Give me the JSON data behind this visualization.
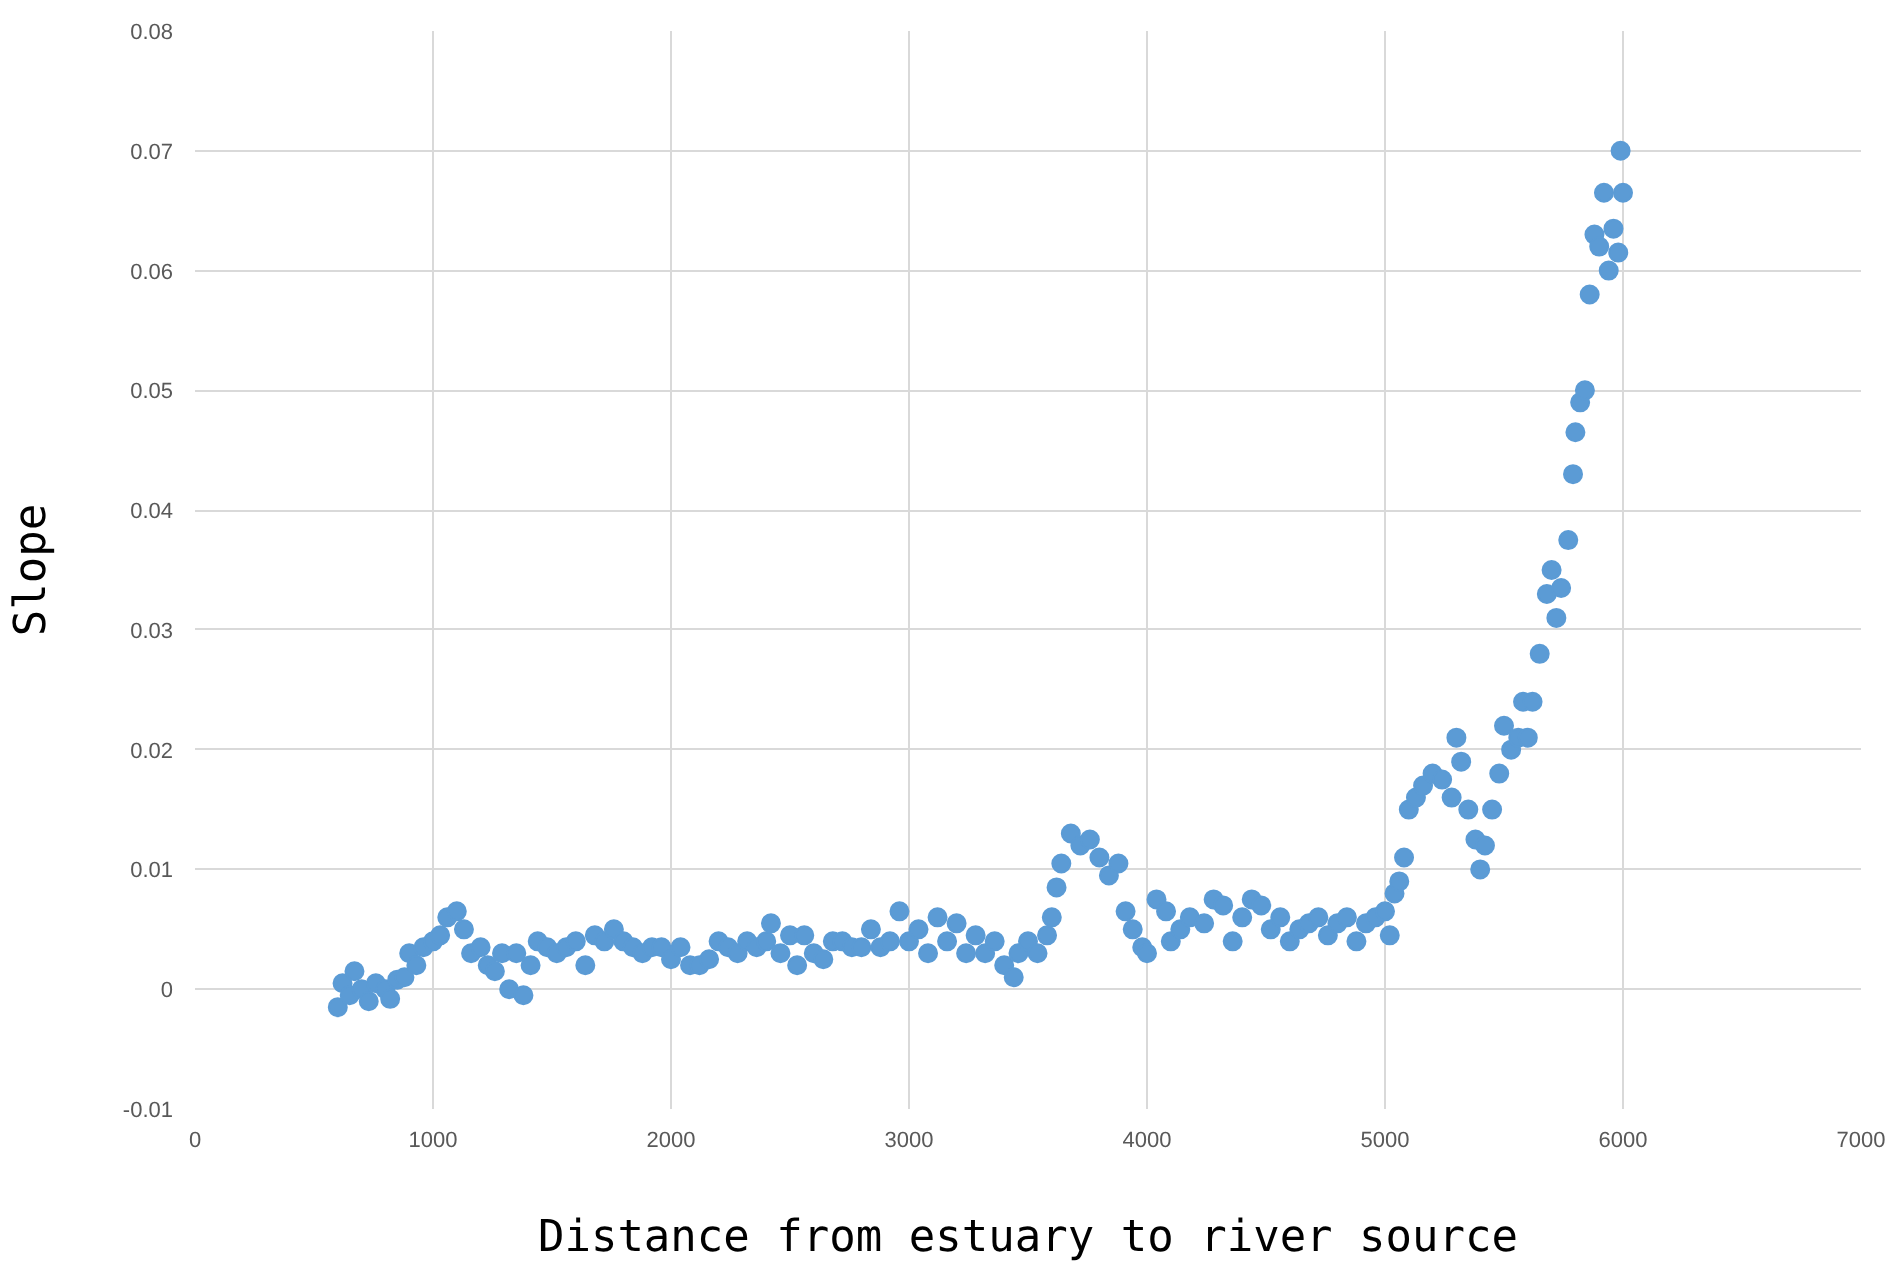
{
  "chart_data": {
    "type": "scatter",
    "xlabel": "Distance from estuary to river source",
    "ylabel": "Slope",
    "xlim": [
      0,
      7000
    ],
    "xticks": [
      0,
      1000,
      2000,
      3000,
      4000,
      5000,
      6000,
      7000
    ],
    "ylim": [
      -0.01,
      0.08
    ],
    "yticks": [
      -0.01,
      0,
      0.01,
      0.02,
      0.03,
      0.04,
      0.05,
      0.06,
      0.07,
      0.08
    ],
    "grid": true,
    "marker": "circle",
    "series": [
      {
        "color": "#5b9bd5",
        "x": [
          600,
          620,
          650,
          670,
          700,
          730,
          760,
          800,
          820,
          850,
          880,
          900,
          930,
          960,
          1000,
          1030,
          1060,
          1100,
          1130,
          1160,
          1200,
          1230,
          1260,
          1290,
          1320,
          1350,
          1380,
          1410,
          1440,
          1480,
          1520,
          1560,
          1600,
          1640,
          1680,
          1720,
          1760,
          1800,
          1840,
          1880,
          1920,
          1960,
          2000,
          2040,
          2080,
          2120,
          2160,
          2200,
          2240,
          2280,
          2320,
          2360,
          2400,
          2420,
          2460,
          2500,
          2530,
          2560,
          2600,
          2640,
          2680,
          2720,
          2760,
          2800,
          2840,
          2880,
          2920,
          2960,
          3000,
          3040,
          3080,
          3120,
          3160,
          3200,
          3240,
          3280,
          3320,
          3360,
          3400,
          3440,
          3460,
          3500,
          3540,
          3580,
          3600,
          3620,
          3640,
          3680,
          3720,
          3760,
          3800,
          3840,
          3880,
          3910,
          3940,
          3980,
          4000,
          4040,
          4080,
          4100,
          4140,
          4180,
          4240,
          4280,
          4320,
          4360,
          4400,
          4440,
          4480,
          4520,
          4560,
          4600,
          4640,
          4680,
          4720,
          4760,
          4800,
          4840,
          4880,
          4920,
          4960,
          5000,
          5020,
          5040,
          5060,
          5080,
          5100,
          5130,
          5160,
          5200,
          5240,
          5280,
          5300,
          5320,
          5350,
          5380,
          5400,
          5420,
          5450,
          5480,
          5500,
          5530,
          5560,
          5580,
          5600,
          5620,
          5650,
          5680,
          5700,
          5720,
          5740,
          5770,
          5790,
          5800,
          5820,
          5840,
          5860,
          5880,
          5900,
          5920,
          5940,
          5960,
          5980,
          5990,
          6000
        ],
        "values": [
          -0.0015,
          0.0005,
          -0.0005,
          0.0015,
          0.0,
          -0.001,
          0.0005,
          0.0,
          -0.0008,
          0.0008,
          0.001,
          0.003,
          0.002,
          0.0035,
          0.004,
          0.0045,
          0.006,
          0.0065,
          0.005,
          0.003,
          0.0035,
          0.002,
          0.0015,
          0.003,
          0.0,
          0.003,
          -0.0005,
          0.002,
          0.004,
          0.0035,
          0.003,
          0.0035,
          0.004,
          0.002,
          0.0045,
          0.004,
          0.005,
          0.004,
          0.0035,
          0.003,
          0.0035,
          0.0035,
          0.0025,
          0.0035,
          0.002,
          0.002,
          0.0025,
          0.004,
          0.0035,
          0.003,
          0.004,
          0.0035,
          0.004,
          0.0055,
          0.003,
          0.0045,
          0.002,
          0.0045,
          0.003,
          0.0025,
          0.004,
          0.004,
          0.0035,
          0.0035,
          0.005,
          0.0035,
          0.004,
          0.0065,
          0.004,
          0.005,
          0.003,
          0.006,
          0.004,
          0.0055,
          0.003,
          0.0045,
          0.003,
          0.004,
          0.002,
          0.001,
          0.003,
          0.004,
          0.003,
          0.0045,
          0.006,
          0.0085,
          0.0105,
          0.013,
          0.012,
          0.0125,
          0.011,
          0.0095,
          0.0105,
          0.0065,
          0.005,
          0.0035,
          0.003,
          0.0075,
          0.0065,
          0.004,
          0.005,
          0.006,
          0.0055,
          0.0075,
          0.007,
          0.004,
          0.006,
          0.0075,
          0.007,
          0.005,
          0.006,
          0.004,
          0.005,
          0.0055,
          0.006,
          0.0045,
          0.0055,
          0.006,
          0.004,
          0.0055,
          0.006,
          0.0065,
          0.0045,
          0.008,
          0.009,
          0.011,
          0.015,
          0.016,
          0.017,
          0.018,
          0.0175,
          0.016,
          0.021,
          0.019,
          0.015,
          0.0125,
          0.01,
          0.012,
          0.015,
          0.018,
          0.022,
          0.02,
          0.021,
          0.024,
          0.021,
          0.024,
          0.028,
          0.033,
          0.035,
          0.031,
          0.0335,
          0.0375,
          0.043,
          0.0465,
          0.049,
          0.05,
          0.058,
          0.063,
          0.062,
          0.0665,
          0.06,
          0.0635,
          0.0615,
          0.07,
          0.0665
        ]
      }
    ]
  }
}
